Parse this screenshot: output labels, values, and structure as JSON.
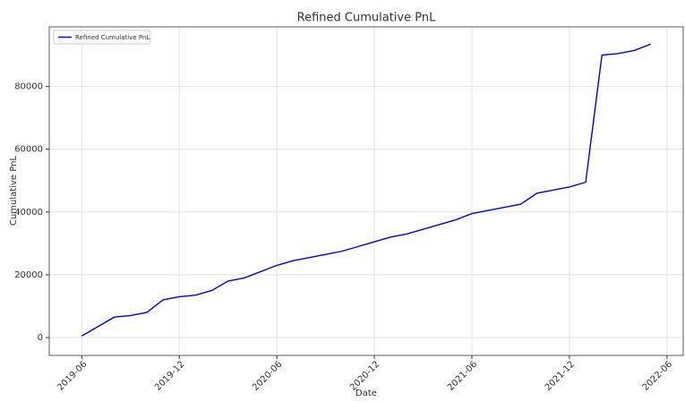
{
  "chart_data": {
    "type": "line",
    "title": "Refined Cumulative PnL",
    "xlabel": "Date",
    "ylabel": "Cumulative PnL",
    "x": [
      "2019-06",
      "2019-07",
      "2019-08",
      "2019-09",
      "2019-10",
      "2019-11",
      "2019-12",
      "2020-01",
      "2020-02",
      "2020-03",
      "2020-04",
      "2020-05",
      "2020-06",
      "2020-07",
      "2020-08",
      "2020-09",
      "2020-10",
      "2020-11",
      "2020-12",
      "2021-01",
      "2021-02",
      "2021-03",
      "2021-04",
      "2021-05",
      "2021-06",
      "2021-07",
      "2021-08",
      "2021-09",
      "2021-10",
      "2021-11",
      "2021-12",
      "2022-01",
      "2022-02",
      "2022-03",
      "2022-04",
      "2022-05"
    ],
    "series": [
      {
        "name": "Refined Cumulative PnL",
        "color": "#0000ee",
        "values": [
          500,
          3500,
          6500,
          7000,
          8000,
          12000,
          13000,
          13500,
          15000,
          18000,
          19000,
          21000,
          23000,
          24500,
          25500,
          26500,
          27500,
          29000,
          30500,
          32000,
          33000,
          34500,
          36000,
          37500,
          39500,
          40500,
          41500,
          42500,
          46000,
          47000,
          48000,
          49500,
          90000,
          90500,
          91500,
          93500
        ]
      }
    ],
    "xlim": [
      "2019-04",
      "2022-07"
    ],
    "xticks": [
      "2019-06",
      "2019-12",
      "2020-06",
      "2020-12",
      "2021-06",
      "2021-12",
      "2022-06"
    ],
    "ylim": [
      -5700,
      99000
    ],
    "yticks": [
      0,
      20000,
      40000,
      60000,
      80000
    ],
    "grid": true,
    "legend": "upper left"
  }
}
